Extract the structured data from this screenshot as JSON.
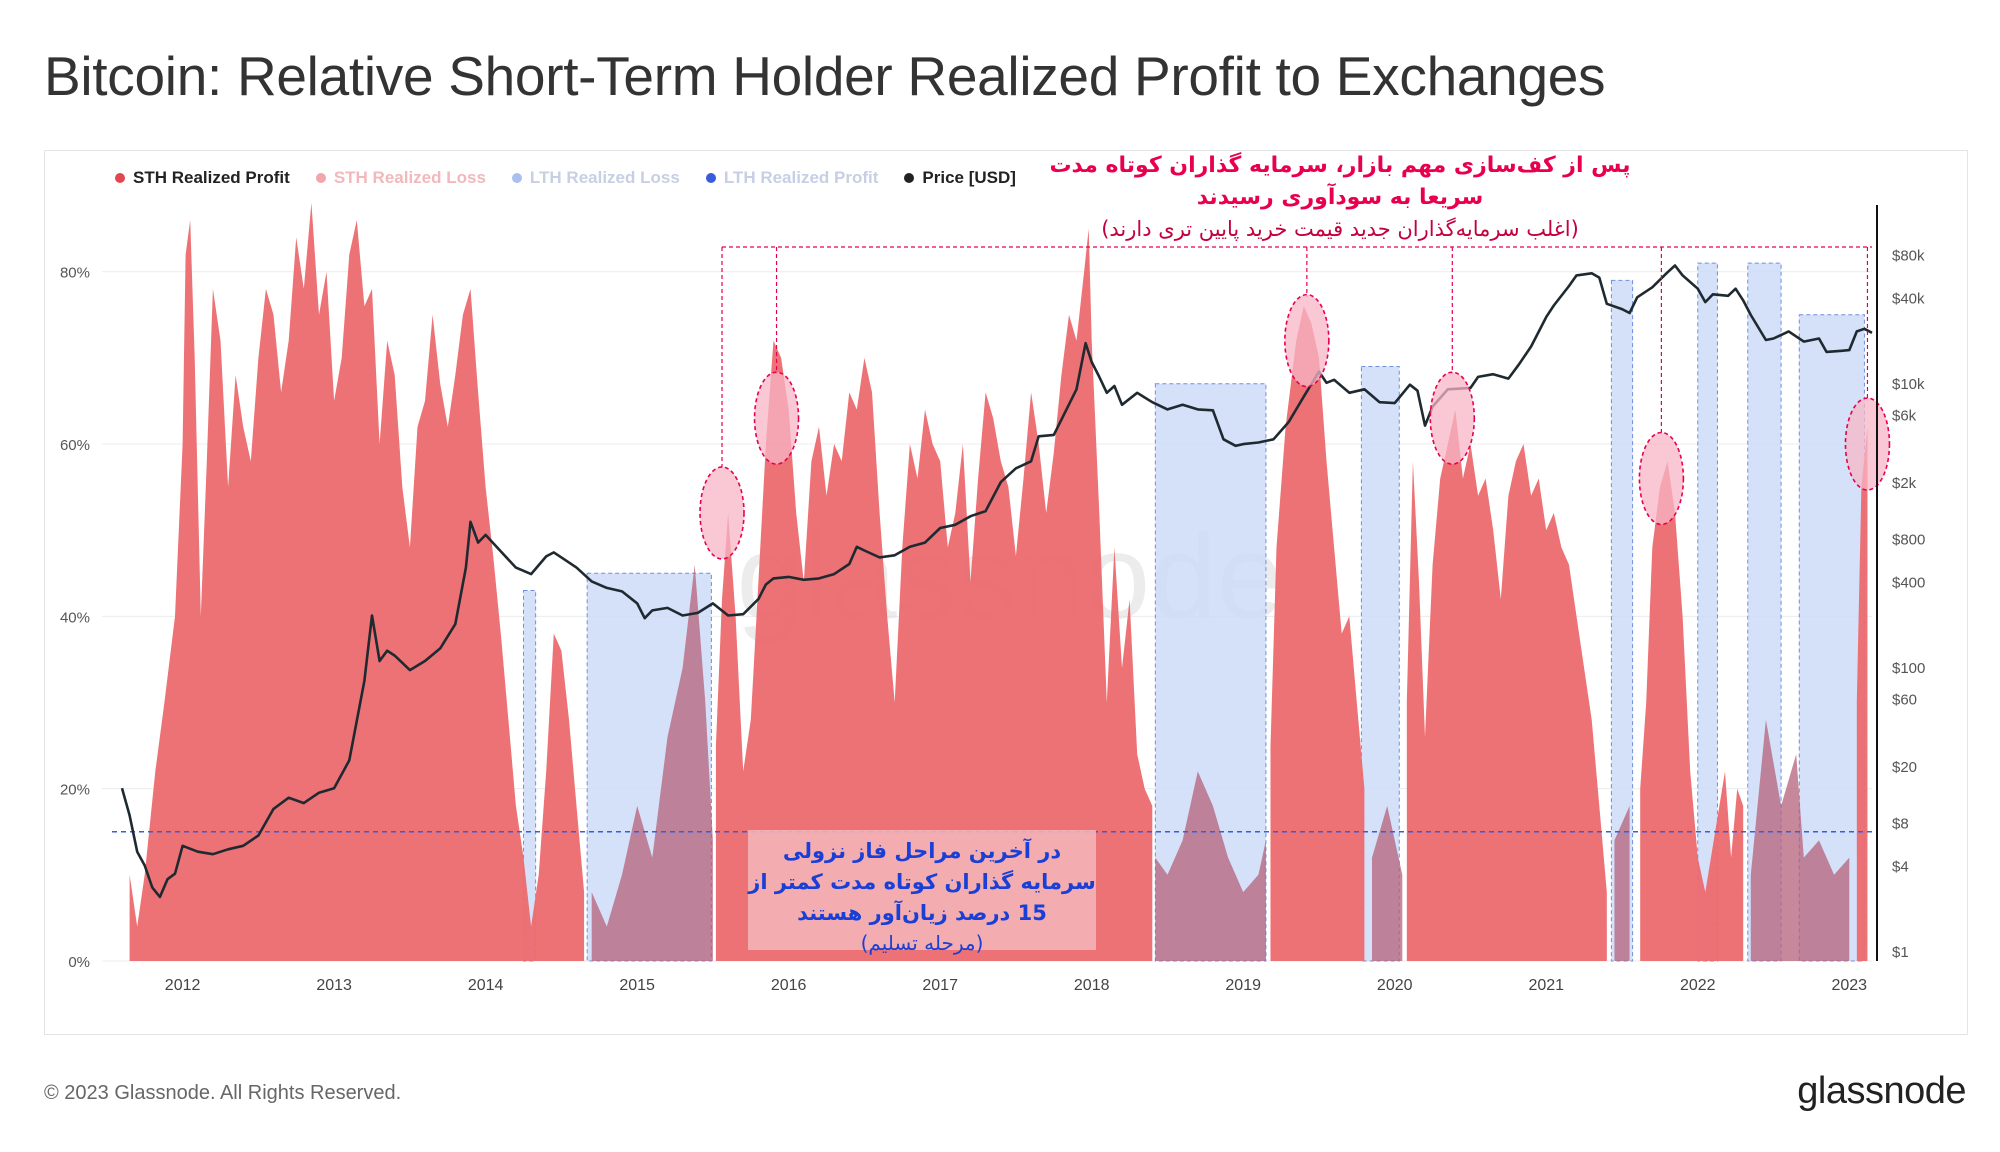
{
  "title": "Bitcoin: Relative Short-Term Holder Realized Profit to Exchanges",
  "footer": {
    "copyright": "© 2023 Glassnode. All Rights Reserved.",
    "logo": "glassnode"
  },
  "watermark": "glassnode",
  "annotations": {
    "top_title": "پس از کف‌سازی مهم بازار، سرمایه گذاران کوتاه مدت سریعا به سودآوری رسیدند",
    "top_subtitle": "(اغلب سرمایه‌گذاران جدید قیمت خرید پایین تری دارند)",
    "box_title": "در آخرین مراحل فاز نزولی سرمایه گذاران کوتاه مدت کمتر از 15 درصد زیان‌آور هستند",
    "box_subtitle": "(مرحله تسلیم)"
  },
  "colors": {
    "sth_profit": "#ec6a6f",
    "sth_loss": "#f2a5aa",
    "lth_loss": "#a9c0ef",
    "lth_profit": "#3a5bdc",
    "price": "#1f2a30",
    "highlight": "#e8004f",
    "capitulation_line": "#3a5bdc"
  },
  "chart_data": {
    "type": "area",
    "legend": [
      {
        "label": "STH Realized Profit",
        "color": "#e0474e",
        "style": "active"
      },
      {
        "label": "STH Realized Loss",
        "color": "#f2a5aa",
        "style": "muted-pink"
      },
      {
        "label": "LTH Realized Loss",
        "color": "#a9c0ef",
        "style": "muted"
      },
      {
        "label": "LTH Realized Profit",
        "color": "#3a5bdc",
        "style": "muted"
      },
      {
        "label": "Price [USD]",
        "color": "#222222",
        "style": "active"
      }
    ],
    "x_ticks": [
      "2012",
      "2013",
      "2014",
      "2015",
      "2016",
      "2017",
      "2018",
      "2019",
      "2020",
      "2021",
      "2022",
      "2023"
    ],
    "x_range": [
      2011.6,
      2023.15
    ],
    "y_left": {
      "ticks": [
        "0%",
        "20%",
        "40%",
        "60%",
        "80%"
      ],
      "values": [
        0,
        20,
        40,
        60,
        80
      ],
      "range": [
        0,
        86
      ]
    },
    "y_right": {
      "scale": "log",
      "ticks": [
        "$1",
        "$4",
        "$8",
        "$20",
        "$60",
        "$100",
        "$400",
        "$800",
        "$2k",
        "$6k",
        "$10k",
        "$40k",
        "$80k"
      ],
      "values": [
        1,
        4,
        8,
        20,
        60,
        100,
        400,
        800,
        2000,
        6000,
        10000,
        40000,
        80000
      ],
      "range": [
        0.85,
        140000
      ]
    },
    "capitulation_threshold_pct": 15,
    "sth_realized_profit_pct": [
      [
        2011.65,
        10
      ],
      [
        2011.7,
        4
      ],
      [
        2011.75,
        10
      ],
      [
        2011.82,
        22
      ],
      [
        2011.88,
        30
      ],
      [
        2011.95,
        40
      ],
      [
        2012.0,
        60
      ],
      [
        2012.02,
        82
      ],
      [
        2012.05,
        86
      ],
      [
        2012.08,
        70
      ],
      [
        2012.12,
        40
      ],
      [
        2012.16,
        58
      ],
      [
        2012.2,
        78
      ],
      [
        2012.25,
        72
      ],
      [
        2012.3,
        55
      ],
      [
        2012.35,
        68
      ],
      [
        2012.4,
        62
      ],
      [
        2012.45,
        58
      ],
      [
        2012.5,
        70
      ],
      [
        2012.55,
        78
      ],
      [
        2012.6,
        75
      ],
      [
        2012.65,
        66
      ],
      [
        2012.7,
        72
      ],
      [
        2012.75,
        84
      ],
      [
        2012.8,
        78
      ],
      [
        2012.85,
        88
      ],
      [
        2012.9,
        75
      ],
      [
        2012.95,
        80
      ],
      [
        2013.0,
        65
      ],
      [
        2013.05,
        70
      ],
      [
        2013.1,
        82
      ],
      [
        2013.15,
        86
      ],
      [
        2013.2,
        76
      ],
      [
        2013.25,
        78
      ],
      [
        2013.3,
        60
      ],
      [
        2013.35,
        72
      ],
      [
        2013.4,
        68
      ],
      [
        2013.45,
        55
      ],
      [
        2013.5,
        48
      ],
      [
        2013.55,
        62
      ],
      [
        2013.6,
        65
      ],
      [
        2013.65,
        75
      ],
      [
        2013.7,
        67
      ],
      [
        2013.75,
        62
      ],
      [
        2013.8,
        68
      ],
      [
        2013.85,
        75
      ],
      [
        2013.9,
        78
      ],
      [
        2013.95,
        66
      ],
      [
        2014.0,
        55
      ],
      [
        2014.05,
        47
      ],
      [
        2014.1,
        38
      ],
      [
        2014.15,
        28
      ],
      [
        2014.2,
        18
      ],
      [
        2014.25,
        12
      ],
      [
        2014.3,
        4
      ],
      [
        2014.35,
        10
      ],
      [
        2014.4,
        22
      ],
      [
        2014.45,
        38
      ],
      [
        2014.5,
        36
      ],
      [
        2014.55,
        28
      ],
      [
        2014.6,
        18
      ],
      [
        2014.65,
        8
      ],
      [
        2015.52,
        25
      ],
      [
        2015.56,
        42
      ],
      [
        2015.6,
        52
      ],
      [
        2015.65,
        40
      ],
      [
        2015.7,
        22
      ],
      [
        2015.75,
        28
      ],
      [
        2015.8,
        44
      ],
      [
        2015.85,
        60
      ],
      [
        2015.9,
        72
      ],
      [
        2015.95,
        70
      ],
      [
        2016.0,
        64
      ],
      [
        2016.05,
        52
      ],
      [
        2016.1,
        44
      ],
      [
        2016.15,
        58
      ],
      [
        2016.2,
        62
      ],
      [
        2016.25,
        54
      ],
      [
        2016.3,
        60
      ],
      [
        2016.35,
        58
      ],
      [
        2016.4,
        66
      ],
      [
        2016.45,
        64
      ],
      [
        2016.5,
        70
      ],
      [
        2016.55,
        66
      ],
      [
        2016.6,
        52
      ],
      [
        2016.65,
        40
      ],
      [
        2016.7,
        30
      ],
      [
        2016.75,
        48
      ],
      [
        2016.8,
        60
      ],
      [
        2016.85,
        56
      ],
      [
        2016.9,
        64
      ],
      [
        2016.95,
        60
      ],
      [
        2017.0,
        58
      ],
      [
        2017.05,
        48
      ],
      [
        2017.1,
        52
      ],
      [
        2017.15,
        60
      ],
      [
        2017.2,
        44
      ],
      [
        2017.25,
        56
      ],
      [
        2017.3,
        66
      ],
      [
        2017.35,
        63
      ],
      [
        2017.4,
        58
      ],
      [
        2017.45,
        55
      ],
      [
        2017.5,
        47
      ],
      [
        2017.55,
        56
      ],
      [
        2017.6,
        66
      ],
      [
        2017.65,
        60
      ],
      [
        2017.7,
        52
      ],
      [
        2017.75,
        59
      ],
      [
        2017.8,
        68
      ],
      [
        2017.85,
        75
      ],
      [
        2017.9,
        72
      ],
      [
        2017.95,
        80
      ],
      [
        2017.98,
        85
      ],
      [
        2018.0,
        72
      ],
      [
        2018.05,
        52
      ],
      [
        2018.1,
        30
      ],
      [
        2018.15,
        48
      ],
      [
        2018.2,
        34
      ],
      [
        2018.25,
        42
      ],
      [
        2018.3,
        24
      ],
      [
        2018.35,
        20
      ],
      [
        2018.4,
        18
      ],
      [
        2019.18,
        25
      ],
      [
        2019.22,
        48
      ],
      [
        2019.28,
        62
      ],
      [
        2019.35,
        72
      ],
      [
        2019.4,
        76
      ],
      [
        2019.45,
        74
      ],
      [
        2019.5,
        70
      ],
      [
        2019.55,
        58
      ],
      [
        2019.6,
        48
      ],
      [
        2019.65,
        38
      ],
      [
        2019.7,
        40
      ],
      [
        2019.75,
        30
      ],
      [
        2019.8,
        20
      ],
      [
        2020.08,
        30
      ],
      [
        2020.12,
        58
      ],
      [
        2020.16,
        44
      ],
      [
        2020.2,
        26
      ],
      [
        2020.25,
        46
      ],
      [
        2020.3,
        56
      ],
      [
        2020.35,
        60
      ],
      [
        2020.4,
        64
      ],
      [
        2020.45,
        56
      ],
      [
        2020.5,
        60
      ],
      [
        2020.55,
        54
      ],
      [
        2020.6,
        56
      ],
      [
        2020.65,
        50
      ],
      [
        2020.7,
        42
      ],
      [
        2020.75,
        54
      ],
      [
        2020.8,
        58
      ],
      [
        2020.85,
        60
      ],
      [
        2020.9,
        54
      ],
      [
        2020.95,
        56
      ],
      [
        2021.0,
        50
      ],
      [
        2021.05,
        52
      ],
      [
        2021.1,
        48
      ],
      [
        2021.15,
        46
      ],
      [
        2021.2,
        40
      ],
      [
        2021.25,
        34
      ],
      [
        2021.3,
        28
      ],
      [
        2021.35,
        18
      ],
      [
        2021.4,
        8
      ],
      [
        2021.62,
        20
      ],
      [
        2021.66,
        30
      ],
      [
        2021.7,
        48
      ],
      [
        2021.75,
        55
      ],
      [
        2021.8,
        58
      ],
      [
        2021.85,
        52
      ],
      [
        2021.9,
        40
      ],
      [
        2021.95,
        22
      ],
      [
        2022.0,
        12
      ],
      [
        2022.05,
        8
      ],
      [
        2022.18,
        22
      ],
      [
        2022.22,
        12
      ],
      [
        2022.26,
        20
      ],
      [
        2022.3,
        18
      ],
      [
        2023.05,
        30
      ],
      [
        2023.08,
        55
      ],
      [
        2023.12,
        62
      ]
    ],
    "sth_realized_loss_pct_in_lth_windows": [
      [
        2014.7,
        8
      ],
      [
        2014.8,
        4
      ],
      [
        2014.9,
        10
      ],
      [
        2015.0,
        18
      ],
      [
        2015.1,
        12
      ],
      [
        2015.2,
        26
      ],
      [
        2015.3,
        34
      ],
      [
        2015.38,
        46
      ],
      [
        2015.45,
        30
      ],
      [
        2015.5,
        14
      ],
      [
        2018.42,
        12
      ],
      [
        2018.5,
        10
      ],
      [
        2018.6,
        14
      ],
      [
        2018.7,
        22
      ],
      [
        2018.8,
        18
      ],
      [
        2018.9,
        12
      ],
      [
        2019.0,
        8
      ],
      [
        2019.1,
        10
      ],
      [
        2019.15,
        14
      ],
      [
        2019.85,
        12
      ],
      [
        2019.95,
        18
      ],
      [
        2020.05,
        10
      ],
      [
        2021.45,
        14
      ],
      [
        2021.55,
        18
      ],
      [
        2022.35,
        10
      ],
      [
        2022.45,
        28
      ],
      [
        2022.55,
        18
      ],
      [
        2022.65,
        24
      ],
      [
        2022.7,
        12
      ],
      [
        2022.8,
        14
      ],
      [
        2022.9,
        10
      ],
      [
        2023.0,
        12
      ]
    ],
    "lth_windows": [
      [
        2014.25,
        2014.33,
        43
      ],
      [
        2014.67,
        2015.49,
        45
      ],
      [
        2018.42,
        2019.15,
        67
      ],
      [
        2019.78,
        2020.03,
        69
      ],
      [
        2021.43,
        2021.57,
        79
      ],
      [
        2022.0,
        2022.13,
        81
      ],
      [
        2022.33,
        2022.55,
        81
      ],
      [
        2022.67,
        2023.1,
        75
      ]
    ],
    "price_usd": [
      [
        2011.6,
        14
      ],
      [
        2011.65,
        9
      ],
      [
        2011.7,
        5
      ],
      [
        2011.75,
        4
      ],
      [
        2011.8,
        2.8
      ],
      [
        2011.85,
        2.4
      ],
      [
        2011.9,
        3.2
      ],
      [
        2011.95,
        3.5
      ],
      [
        2012.0,
        5.5
      ],
      [
        2012.1,
        5
      ],
      [
        2012.2,
        4.8
      ],
      [
        2012.3,
        5.2
      ],
      [
        2012.4,
        5.5
      ],
      [
        2012.5,
        6.5
      ],
      [
        2012.6,
        10
      ],
      [
        2012.7,
        12
      ],
      [
        2012.8,
        11
      ],
      [
        2012.9,
        13
      ],
      [
        2013.0,
        14
      ],
      [
        2013.1,
        22
      ],
      [
        2013.2,
        80
      ],
      [
        2013.25,
        230
      ],
      [
        2013.3,
        110
      ],
      [
        2013.35,
        130
      ],
      [
        2013.4,
        120
      ],
      [
        2013.5,
        95
      ],
      [
        2013.6,
        110
      ],
      [
        2013.7,
        135
      ],
      [
        2013.8,
        200
      ],
      [
        2013.87,
        500
      ],
      [
        2013.9,
        1050
      ],
      [
        2013.95,
        750
      ],
      [
        2014.0,
        850
      ],
      [
        2014.1,
        650
      ],
      [
        2014.2,
        500
      ],
      [
        2014.3,
        450
      ],
      [
        2014.4,
        600
      ],
      [
        2014.45,
        640
      ],
      [
        2014.5,
        590
      ],
      [
        2014.6,
        500
      ],
      [
        2014.7,
        400
      ],
      [
        2014.8,
        360
      ],
      [
        2014.9,
        340
      ],
      [
        2015.0,
        280
      ],
      [
        2015.05,
        220
      ],
      [
        2015.1,
        250
      ],
      [
        2015.2,
        260
      ],
      [
        2015.3,
        230
      ],
      [
        2015.4,
        240
      ],
      [
        2015.5,
        280
      ],
      [
        2015.6,
        230
      ],
      [
        2015.7,
        235
      ],
      [
        2015.8,
        300
      ],
      [
        2015.85,
        380
      ],
      [
        2015.9,
        420
      ],
      [
        2016.0,
        430
      ],
      [
        2016.1,
        410
      ],
      [
        2016.2,
        420
      ],
      [
        2016.3,
        450
      ],
      [
        2016.4,
        530
      ],
      [
        2016.45,
        700
      ],
      [
        2016.5,
        660
      ],
      [
        2016.6,
        590
      ],
      [
        2016.7,
        610
      ],
      [
        2016.8,
        700
      ],
      [
        2016.9,
        750
      ],
      [
        2017.0,
        950
      ],
      [
        2017.1,
        1000
      ],
      [
        2017.2,
        1150
      ],
      [
        2017.3,
        1250
      ],
      [
        2017.4,
        2000
      ],
      [
        2017.5,
        2500
      ],
      [
        2017.6,
        2800
      ],
      [
        2017.65,
        4200
      ],
      [
        2017.75,
        4300
      ],
      [
        2017.8,
        5500
      ],
      [
        2017.9,
        9000
      ],
      [
        2017.96,
        19000
      ],
      [
        2018.0,
        14000
      ],
      [
        2018.05,
        11000
      ],
      [
        2018.1,
        8500
      ],
      [
        2018.15,
        9500
      ],
      [
        2018.2,
        7000
      ],
      [
        2018.3,
        8500
      ],
      [
        2018.4,
        7300
      ],
      [
        2018.5,
        6500
      ],
      [
        2018.6,
        7000
      ],
      [
        2018.7,
        6500
      ],
      [
        2018.8,
        6400
      ],
      [
        2018.87,
        4000
      ],
      [
        2018.95,
        3600
      ],
      [
        2019.0,
        3700
      ],
      [
        2019.1,
        3800
      ],
      [
        2019.2,
        4000
      ],
      [
        2019.3,
        5300
      ],
      [
        2019.4,
        8000
      ],
      [
        2019.5,
        12000
      ],
      [
        2019.55,
        10000
      ],
      [
        2019.6,
        10500
      ],
      [
        2019.7,
        8500
      ],
      [
        2019.8,
        9000
      ],
      [
        2019.9,
        7300
      ],
      [
        2020.0,
        7200
      ],
      [
        2020.1,
        9700
      ],
      [
        2020.15,
        8800
      ],
      [
        2020.2,
        5000
      ],
      [
        2020.25,
        6800
      ],
      [
        2020.35,
        9000
      ],
      [
        2020.5,
        9200
      ],
      [
        2020.55,
        11000
      ],
      [
        2020.65,
        11500
      ],
      [
        2020.75,
        10700
      ],
      [
        2020.82,
        13500
      ],
      [
        2020.9,
        18000
      ],
      [
        2021.0,
        29000
      ],
      [
        2021.05,
        35000
      ],
      [
        2021.15,
        48000
      ],
      [
        2021.2,
        57000
      ],
      [
        2021.3,
        59000
      ],
      [
        2021.35,
        55000
      ],
      [
        2021.4,
        36000
      ],
      [
        2021.5,
        33000
      ],
      [
        2021.55,
        31000
      ],
      [
        2021.6,
        40000
      ],
      [
        2021.7,
        47000
      ],
      [
        2021.8,
        60000
      ],
      [
        2021.85,
        67000
      ],
      [
        2021.9,
        57000
      ],
      [
        2022.0,
        46000
      ],
      [
        2022.05,
        37000
      ],
      [
        2022.1,
        42000
      ],
      [
        2022.2,
        41000
      ],
      [
        2022.25,
        46000
      ],
      [
        2022.3,
        38000
      ],
      [
        2022.35,
        30000
      ],
      [
        2022.45,
        20000
      ],
      [
        2022.5,
        20500
      ],
      [
        2022.6,
        23000
      ],
      [
        2022.7,
        19500
      ],
      [
        2022.8,
        20500
      ],
      [
        2022.85,
        16500
      ],
      [
        2022.95,
        16800
      ],
      [
        2023.0,
        17000
      ],
      [
        2023.05,
        23000
      ],
      [
        2023.1,
        24000
      ],
      [
        2023.15,
        22500
      ]
    ],
    "highlight_markers": [
      {
        "x": 2015.56,
        "y": 52
      },
      {
        "x": 2015.92,
        "y": 63
      },
      {
        "x": 2019.42,
        "y": 72
      },
      {
        "x": 2020.38,
        "y": 63
      },
      {
        "x": 2021.76,
        "y": 56
      },
      {
        "x": 2023.12,
        "y": 60
      }
    ]
  }
}
